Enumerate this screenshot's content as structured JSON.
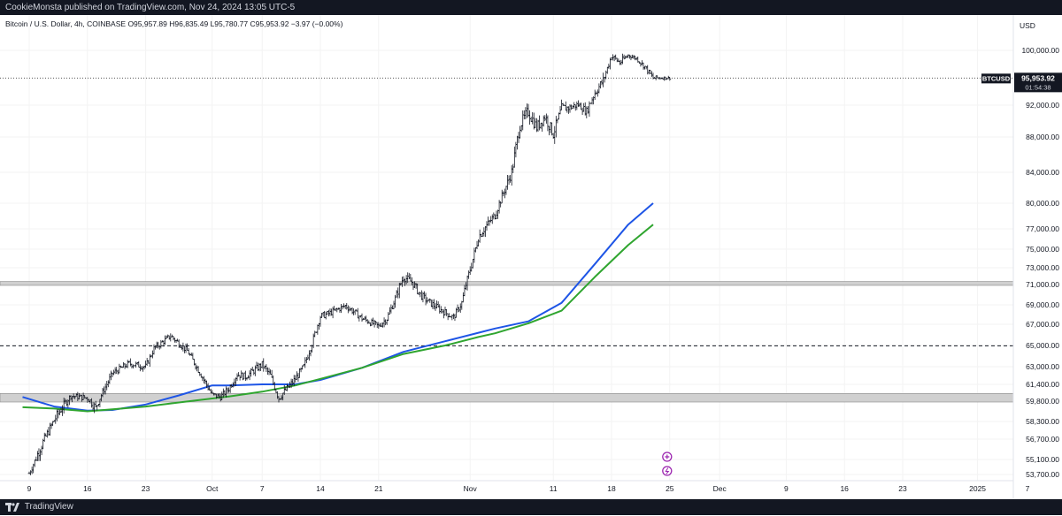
{
  "header": {
    "published": "CookieMonsta published on TradingView.com, Nov 24, 2024 13:05 UTC-5"
  },
  "legend": {
    "symbol": "Bitcoin / U.S. Dollar, 4h, COINBASE",
    "open": "O95,957.89",
    "high": "H96,835.49",
    "low": "L95,780.77",
    "close": "C95,953.92",
    "change": "−3.97 (−0.00%)"
  },
  "footer": {
    "brand": "TradingView"
  },
  "colors": {
    "candle": "#131722",
    "ma_blue": "#1e55e6",
    "ma_green": "#2fa52f",
    "zone": "#d0d0d0",
    "grid": "#f3f3f3",
    "chrome": "#131722",
    "marker": "#9c27b0"
  },
  "icons": [
    "plus-circle-icon",
    "lightning-circle-icon",
    "tradingview-logo-icon"
  ],
  "chart_data": {
    "type": "candlestick",
    "title": "",
    "currency_label": "USD",
    "price_ticks": [
      "100,000.00",
      "92,000.00",
      "88,000.00",
      "84,000.00",
      "80,000.00",
      "77,000.00",
      "75,000.00",
      "73,000.00",
      "71,000.00",
      "69,000.00",
      "67,000.00",
      "65,000.00",
      "63,000.00",
      "61,400.00",
      "59,800.00",
      "58,300.00",
      "56,700.00",
      "55,100.00",
      "53,700.00"
    ],
    "price_tick_values": [
      100000,
      92000,
      88000,
      84000,
      80000,
      77000,
      75000,
      73000,
      71000,
      69000,
      67000,
      65000,
      63000,
      61400,
      59800,
      58300,
      56700,
      55100,
      53700
    ],
    "time_labels": [
      "9",
      "16",
      "23",
      "Oct",
      "7",
      "14",
      "21",
      "Nov",
      "11",
      "18",
      "25",
      "Dec",
      "9",
      "16",
      "23",
      "2025",
      "7"
    ],
    "time_label_days": [
      0,
      7,
      14,
      22,
      28,
      35,
      42,
      53,
      63,
      70,
      77,
      83,
      91,
      98,
      105,
      114,
      120
    ],
    "x_range_days": [
      -0.8,
      123.2
    ],
    "last_price": {
      "symbol": "BTCUSD",
      "price": "95,953.92",
      "countdown": "01:54:38",
      "value": 95953.92
    },
    "price_path": {
      "x_days": [
        0,
        1,
        3,
        5,
        7,
        8,
        9,
        10,
        12,
        14,
        15,
        17,
        19,
        21,
        22,
        23,
        24,
        25,
        26,
        28,
        29,
        30,
        32,
        33,
        34,
        35,
        36,
        38,
        39,
        40,
        42,
        43,
        44,
        45,
        46,
        47,
        48,
        50,
        51,
        52,
        53,
        54,
        56,
        58,
        59,
        60,
        61,
        62,
        63,
        64,
        65,
        66,
        67,
        68,
        69,
        70,
        71,
        72,
        73,
        74,
        75,
        76,
        77
      ],
      "close": [
        53800,
        55500,
        58400,
        60300,
        60100,
        59300,
        60900,
        62400,
        63300,
        63000,
        64700,
        65900,
        64500,
        61800,
        60400,
        60200,
        61000,
        62300,
        62100,
        63200,
        62200,
        60100,
        61900,
        63000,
        65200,
        67800,
        68100,
        68900,
        68300,
        67600,
        66800,
        67600,
        69600,
        71900,
        71300,
        70000,
        69300,
        68200,
        67700,
        69200,
        72800,
        76200,
        78600,
        84000,
        89500,
        91200,
        89200,
        90600,
        88400,
        91600,
        91700,
        92100,
        91200,
        93800,
        95600,
        99200,
        98200,
        99300,
        98800,
        97600,
        95960,
        96000,
        95953
      ],
      "high": [
        55000,
        56600,
        59600,
        61000,
        60900,
        60300,
        61600,
        63200,
        64000,
        63800,
        65500,
        66600,
        65200,
        62500,
        61200,
        61000,
        61800,
        63000,
        62800,
        64000,
        63100,
        61000,
        62800,
        63900,
        66200,
        68800,
        69000,
        69600,
        69200,
        68500,
        67700,
        68700,
        70700,
        73600,
        72600,
        71200,
        70200,
        69200,
        68600,
        70200,
        74400,
        77600,
        80200,
        86200,
        92000,
        93600,
        91500,
        92900,
        90800,
        93300,
        93000,
        93300,
        92600,
        95700,
        97800,
        99600,
        99800,
        99700,
        99300,
        98500,
        97500,
        96800,
        96835
      ],
      "low": [
        53600,
        54400,
        57500,
        59500,
        59300,
        58500,
        59900,
        61600,
        62400,
        62100,
        63900,
        65000,
        63600,
        60900,
        59600,
        59400,
        60100,
        61300,
        61100,
        62200,
        61300,
        59000,
        61000,
        62100,
        64300,
        66900,
        67200,
        68000,
        67400,
        66700,
        66000,
        66700,
        68700,
        70800,
        70300,
        69100,
        68300,
        67200,
        66800,
        68300,
        71600,
        75100,
        77500,
        82600,
        88000,
        89200,
        87700,
        88800,
        87100,
        89800,
        90300,
        90800,
        89800,
        92000,
        94200,
        97200,
        96800,
        98000,
        97600,
        96300,
        95400,
        95600,
        95780
      ]
    },
    "moving_averages": [
      {
        "color": "blue",
        "x_days": [
          -0.8,
          3,
          7,
          10,
          14,
          18,
          22,
          24,
          28,
          32,
          35,
          40,
          45,
          50,
          54,
          56,
          60,
          64,
          68,
          72,
          75
        ],
        "values": [
          60200,
          59400,
          59100,
          59150,
          59550,
          60350,
          61300,
          61300,
          61400,
          61400,
          61800,
          62900,
          64400,
          65400,
          66200,
          66600,
          67300,
          69200,
          73400,
          77500,
          80000
        ]
      },
      {
        "color": "green",
        "x_days": [
          -0.8,
          3,
          7,
          10,
          14,
          18,
          22,
          24,
          28,
          32,
          35,
          40,
          45,
          50,
          54,
          56,
          60,
          64,
          68,
          72,
          75
        ],
        "values": [
          59350,
          59250,
          59050,
          59200,
          59400,
          59700,
          60050,
          60250,
          60700,
          61300,
          61900,
          62900,
          64200,
          65000,
          65800,
          66150,
          67100,
          68400,
          71900,
          75400,
          77500
        ]
      }
    ],
    "zones": [
      {
        "from": 71000,
        "to": 71250
      },
      {
        "from": 59800,
        "to": 60450
      }
    ],
    "horizontal_lines": [
      {
        "style": "dashed",
        "value": 64970
      },
      {
        "style": "dotted",
        "value": 95953.92
      }
    ],
    "event_markers_day": 77
  }
}
